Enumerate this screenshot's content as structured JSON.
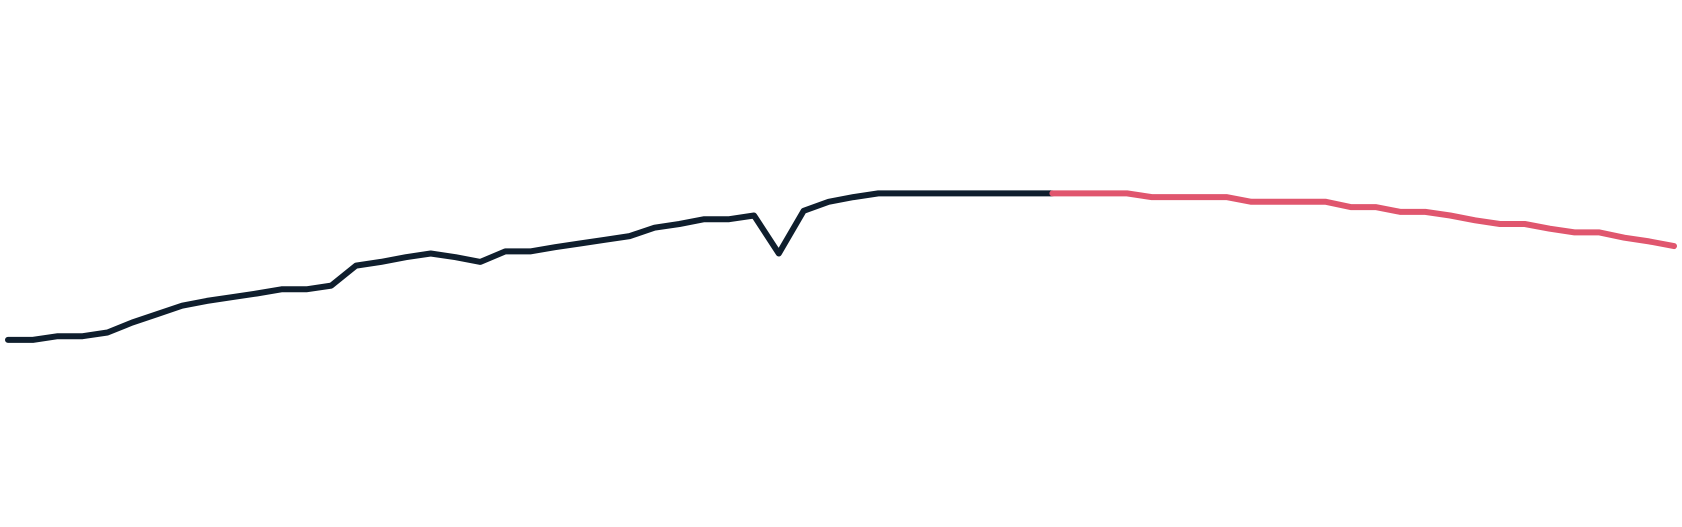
{
  "chart_data": {
    "type": "line",
    "title": "",
    "xlabel": "",
    "ylabel": "",
    "grid": false,
    "legend": "none",
    "x_count": 68,
    "ylim": [
      0,
      1
    ],
    "series": [
      {
        "color": "#0f1e2d",
        "start_index": 0,
        "values": [
          0.355,
          0.355,
          0.362,
          0.362,
          0.369,
          0.388,
          0.404,
          0.42,
          0.429,
          0.436,
          0.443,
          0.451,
          0.451,
          0.458,
          0.496,
          0.503,
          0.512,
          0.519,
          0.512,
          0.503,
          0.523,
          0.523,
          0.531,
          0.538,
          0.545,
          0.552,
          0.568,
          0.575,
          0.584,
          0.584,
          0.591,
          0.519,
          0.6,
          0.617,
          0.626,
          0.633,
          0.633,
          0.633,
          0.633,
          0.633,
          0.633,
          0.633,
          0.633
        ]
      },
      {
        "color": "#e0566e",
        "start_index": 42,
        "values": [
          0.633,
          0.633,
          0.633,
          0.633,
          0.626,
          0.626,
          0.626,
          0.626,
          0.617,
          0.617,
          0.617,
          0.617,
          0.607,
          0.607,
          0.598,
          0.598,
          0.591,
          0.582,
          0.575,
          0.575,
          0.566,
          0.559,
          0.559,
          0.549,
          0.542,
          0.533
        ]
      }
    ]
  }
}
